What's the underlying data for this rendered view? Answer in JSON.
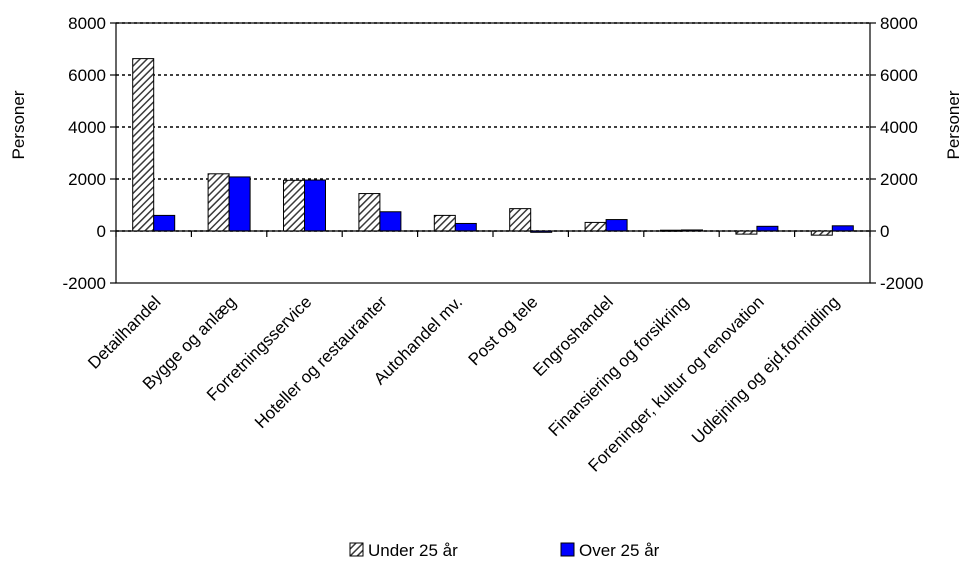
{
  "chart_data": {
    "type": "bar",
    "categories": [
      "Detailhandel",
      "Bygge og anlæg",
      "Forretningsservice",
      "Hoteller og restauranter",
      "Autohandel mv.",
      "Post og tele",
      "Engroshandel",
      "Finansiering og forsikring",
      "Foreninger, kultur og renovation",
      "Udlejning og ejd.formidling"
    ],
    "series": [
      {
        "name": "Under 25 år",
        "values": [
          6630,
          2200,
          1950,
          1440,
          600,
          860,
          330,
          30,
          -120,
          -160
        ],
        "color": "#7f7f7f",
        "pattern": "diagonal-hatch"
      },
      {
        "name": "Over 25 år",
        "values": [
          600,
          2080,
          1960,
          740,
          290,
          -50,
          440,
          40,
          180,
          200
        ],
        "color": "#0000ff"
      }
    ],
    "ylabel_left": "Personer",
    "ylabel_right": "Personer",
    "ylim": [
      -2000,
      8000
    ],
    "yticks": [
      -2000,
      0,
      2000,
      4000,
      6000,
      8000
    ],
    "grid": "dotted horizontal",
    "legend": "bottom"
  }
}
